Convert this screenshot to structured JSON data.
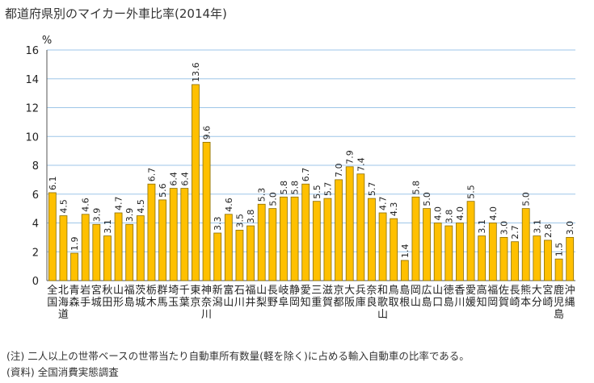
{
  "title": "都道府県別のマイカー外車比率(2014年)",
  "notes": {
    "note1": "(注) 二人以上の世帯ベースの世帯当たり自動車所有数量(軽を除く)に占める輸入自動車の比率である。",
    "note2": "(資料) 全国消費実態調査"
  },
  "colors": {
    "bar": "#FFC000",
    "bar_stroke": "#8a6d00",
    "grid": "#9ec6e8",
    "axis": "#555555"
  },
  "chart_data": {
    "type": "bar",
    "title": "都道府県別のマイカー外車比率(2014年)",
    "xlabel": "",
    "ylabel": "%",
    "ylim": [
      0,
      16
    ],
    "yticks": [
      0,
      2,
      4,
      6,
      8,
      10,
      12,
      14,
      16
    ],
    "grid": true,
    "categories": [
      "全国",
      "北海道",
      "青森",
      "岩手",
      "宮城",
      "秋田",
      "山形",
      "福島",
      "茨城",
      "栃木",
      "群馬",
      "埼玉",
      "千葉",
      "東京",
      "神奈川",
      "新潟",
      "富山",
      "石川",
      "福井",
      "山梨",
      "長野",
      "岐阜",
      "静岡",
      "愛知",
      "三重",
      "滋賀",
      "京都",
      "大阪",
      "兵庫",
      "奈良",
      "和歌山",
      "鳥取",
      "島根",
      "岡山",
      "広島",
      "山口",
      "徳島",
      "香川",
      "愛媛",
      "高知",
      "福岡",
      "佐賀",
      "長崎",
      "熊本",
      "大分",
      "宮崎",
      "鹿児島",
      "沖縄"
    ],
    "values": [
      6.1,
      4.5,
      1.9,
      4.6,
      3.9,
      3.1,
      4.7,
      3.9,
      4.5,
      6.7,
      5.6,
      6.4,
      6.4,
      13.6,
      9.6,
      3.3,
      4.6,
      3.5,
      3.8,
      5.3,
      5.0,
      5.8,
      5.8,
      6.7,
      5.5,
      5.7,
      7.0,
      7.9,
      7.4,
      5.7,
      4.7,
      4.3,
      1.4,
      5.8,
      5.0,
      4.0,
      3.8,
      4.0,
      5.5,
      3.1,
      4.0,
      3.0,
      2.7,
      5.0,
      3.1,
      2.8,
      1.5,
      3.0
    ],
    "data_labels": [
      "6.1",
      "4.5",
      "1.9",
      "4.6",
      "3.9",
      "3.1",
      "4.7",
      "3.9",
      "4.5",
      "6.7",
      "5.6",
      "6.4",
      "6.4",
      "13.6",
      "9.6",
      "3.3",
      "4.6",
      "3.5",
      "3.8",
      "5.3",
      "5.0",
      "5.8",
      "5.8",
      "6.7",
      "5.5",
      "5.7",
      "7.0",
      "7.9",
      "7.4",
      "5.7",
      "4.7",
      "4.3",
      "1.4",
      "5.8",
      "5.0",
      "4.0",
      "3.8",
      "4.0",
      "5.5",
      "3.1",
      "4.0",
      "3.0",
      "2.7",
      "5.0",
      "3.1",
      "2.8",
      "1.5",
      "3.0"
    ]
  }
}
